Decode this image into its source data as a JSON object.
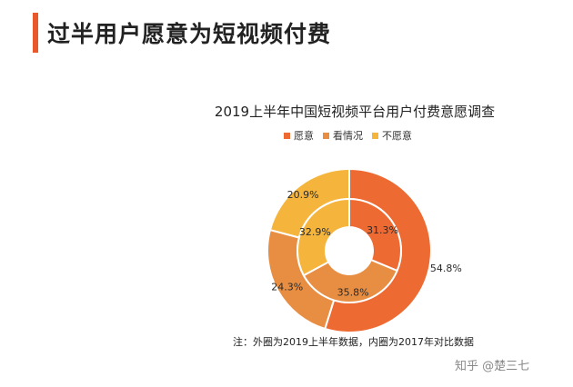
{
  "header": {
    "title": "过半用户愿意为短视频付费"
  },
  "chart_data": {
    "type": "donut",
    "title": "2019上半年中国短视频平台用户付费意愿调查",
    "categories": [
      "愿意",
      "看情况",
      "不愿意"
    ],
    "colors": [
      "#ee6a33",
      "#e88e42",
      "#f5b43b"
    ],
    "series": [
      {
        "name": "外圈",
        "values": [
          54.8,
          24.3,
          20.9
        ],
        "labels": [
          "54.8%",
          "24.3%",
          "20.9%"
        ]
      },
      {
        "name": "内圈",
        "values": [
          31.3,
          35.8,
          32.9
        ],
        "labels": [
          "31.3%",
          "35.8%",
          "32.9%"
        ]
      }
    ],
    "legend_position": "top",
    "note": "注：外圈为2019上半年数据，内圈为2017年对比数据"
  },
  "watermark": "知乎 @楚三七"
}
